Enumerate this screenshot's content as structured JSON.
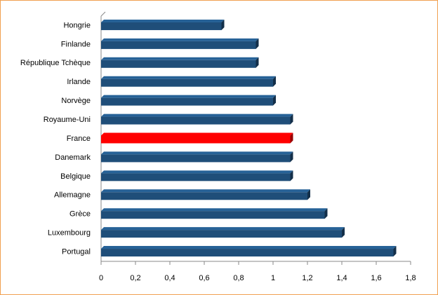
{
  "chart_data": {
    "type": "bar",
    "orientation": "horizontal",
    "categories": [
      "Hongrie",
      "Finlande",
      "République Tchèque",
      "Irlande",
      "Norvège",
      "Royaume-Uni",
      "France",
      "Danemark",
      "Belgique",
      "Allemagne",
      "Grèce",
      "Luxembourg",
      "Portugal"
    ],
    "values": [
      0.7,
      0.9,
      0.9,
      1.0,
      1.0,
      1.1,
      1.1,
      1.1,
      1.1,
      1.2,
      1.3,
      1.4,
      1.7
    ],
    "colors": [
      "#1f4e79",
      "#1f4e79",
      "#1f4e79",
      "#1f4e79",
      "#1f4e79",
      "#1f4e79",
      "#ff0000",
      "#1f4e79",
      "#1f4e79",
      "#1f4e79",
      "#1f4e79",
      "#1f4e79",
      "#1f4e79"
    ],
    "xlim": [
      0,
      1.8
    ],
    "xticks": [
      0,
      {
        "value": 0.2,
        "label": "0,2"
      },
      {
        "value": 0.4,
        "label": "0,4"
      },
      {
        "value": 0.6,
        "label": "0,6"
      },
      {
        "value": 0.8,
        "label": "0,8"
      },
      1,
      {
        "value": 1.2,
        "label": "1,2"
      },
      {
        "value": 1.4,
        "label": "1,4"
      },
      {
        "value": 1.6,
        "label": "1,6"
      },
      {
        "value": 1.8,
        "label": "1,8"
      }
    ],
    "grid": false
  }
}
